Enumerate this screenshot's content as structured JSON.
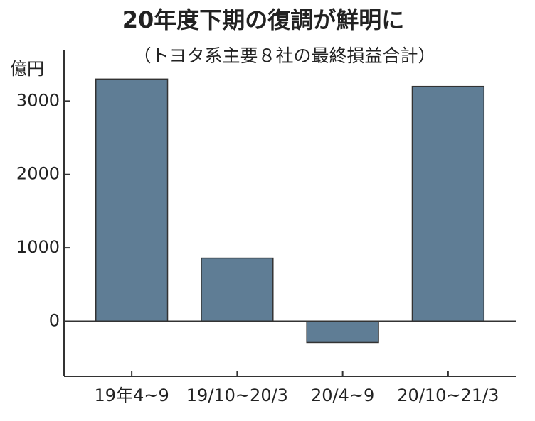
{
  "chart_data": {
    "type": "bar",
    "title": "20年度下期の復調が鮮明に",
    "subtitle": "（トヨタ系主要８社の最終損益合計）",
    "y_label": "億円",
    "categories": [
      "19年4~9",
      "19/10~20/3",
      "20/4~9",
      "20/10~21/3"
    ],
    "values": [
      3300,
      860,
      -290,
      3200
    ],
    "color": "#5f7d95",
    "ylim": [
      -750,
      3700
    ],
    "yticks": [
      0,
      1000,
      2000,
      3000
    ],
    "grid": false
  }
}
